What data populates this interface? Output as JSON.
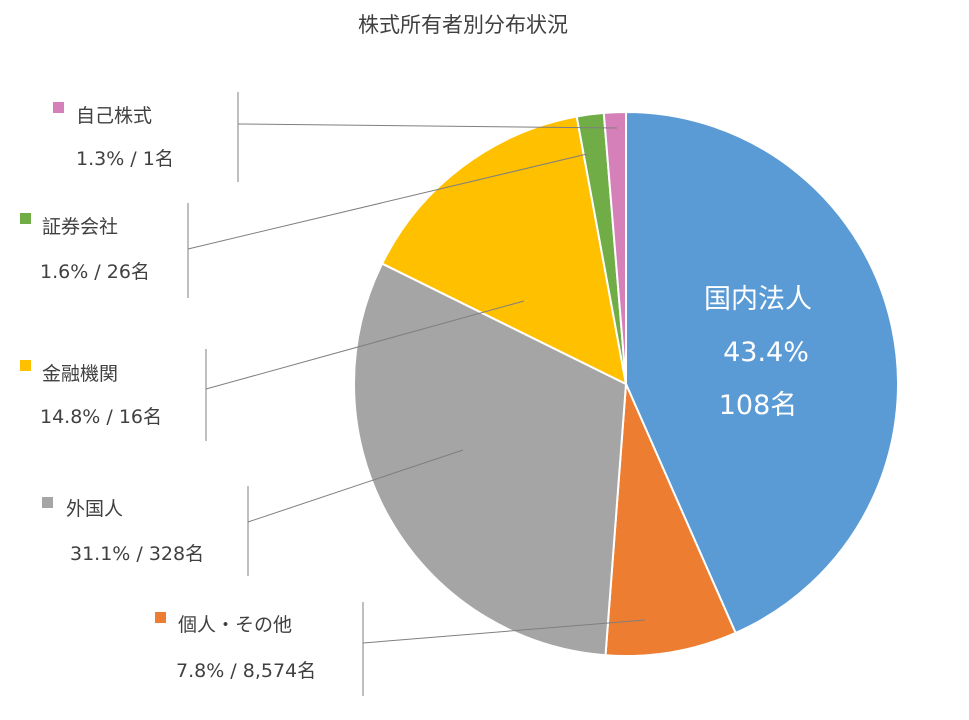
{
  "chart_data": {
    "type": "pie",
    "title": "株式所有者別分布状況",
    "slices": [
      {
        "name": "国内法人",
        "percent": 43.4,
        "percent_label": "43.4%",
        "holders_label": "108名",
        "color": "#5b9bd5"
      },
      {
        "name": "個人・その他",
        "percent": 7.8,
        "percent_label": "7.8%",
        "holders_label": "8,574名",
        "color": "#ed7d31"
      },
      {
        "name": "外国人",
        "percent": 31.1,
        "percent_label": "31.1%",
        "holders_label": "328名",
        "color": "#a5a5a5"
      },
      {
        "name": "金融機関",
        "percent": 14.8,
        "percent_label": "14.8%",
        "holders_label": "16名",
        "color": "#ffc000"
      },
      {
        "name": "証券会社",
        "percent": 1.6,
        "percent_label": "1.6%",
        "holders_label": "26名",
        "color": "#70ad47"
      },
      {
        "name": "自己株式",
        "percent": 1.3,
        "percent_label": "1.3%",
        "holders_label": "1名",
        "color": "#d580b8"
      }
    ],
    "value_separator": "/"
  }
}
